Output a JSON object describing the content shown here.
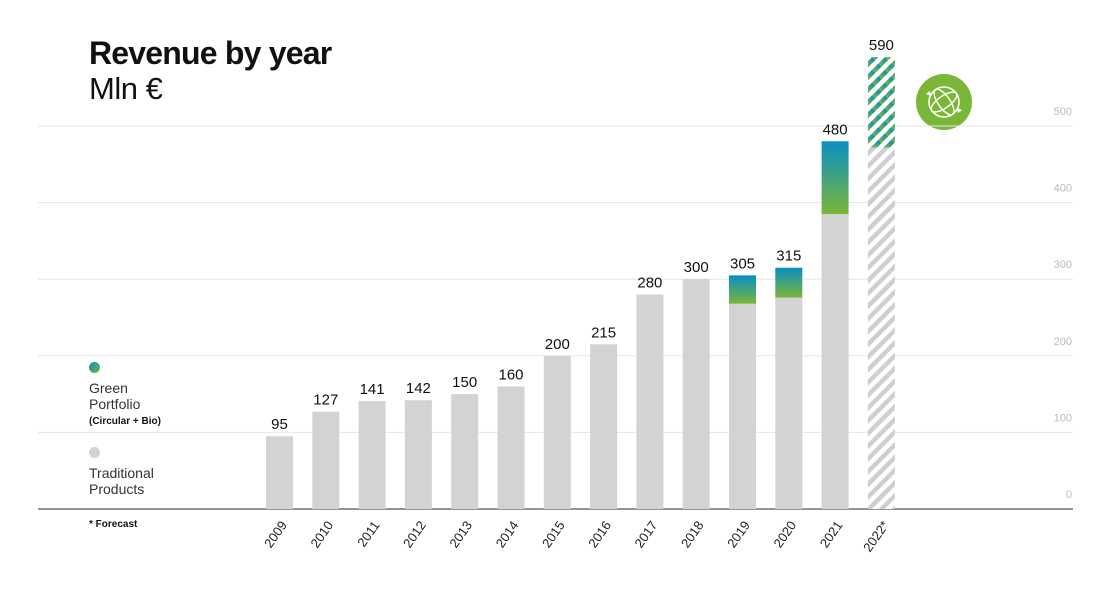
{
  "title": "Revenue by year",
  "subtitle": "Mln €",
  "legend": {
    "green": {
      "line1": "Green",
      "line2": "Portfolio",
      "note": "(Circular + Bio)"
    },
    "traditional": {
      "line1": "Traditional",
      "line2": "Products"
    }
  },
  "footnote": "* Forecast",
  "icon": "circular-recycle-icon",
  "colors": {
    "traditional": "#d3d3d3",
    "green_top": "#0a8fc4",
    "green_bottom": "#7ab638",
    "badge": "#7ab638",
    "grid": "#e6e6e6",
    "axis": "#555555",
    "y_tick_text": "#bbbbbb"
  },
  "chart_data": {
    "type": "bar",
    "stacked": true,
    "categories": [
      "2009",
      "2010",
      "2011",
      "2012",
      "2013",
      "2014",
      "2015",
      "2016",
      "2017",
      "2018",
      "2019",
      "2020",
      "2021",
      "2022*"
    ],
    "series": [
      {
        "name": "Traditional Products",
        "values": [
          95,
          127,
          141,
          142,
          150,
          160,
          200,
          215,
          280,
          300,
          268,
          276,
          385,
          472
        ]
      },
      {
        "name": "Green Portfolio (Circular + Bio)",
        "values": [
          0,
          0,
          0,
          0,
          0,
          0,
          0,
          0,
          0,
          0,
          37,
          39,
          95,
          118
        ]
      }
    ],
    "totals": [
      95,
      127,
      141,
      142,
      150,
      160,
      200,
      215,
      280,
      300,
      305,
      315,
      480,
      590
    ],
    "forecast": [
      "2022*"
    ],
    "yticks": [
      0,
      100,
      200,
      300,
      400,
      500
    ],
    "ylim": [
      0,
      590
    ],
    "grid": true,
    "y_axis_side": "right"
  }
}
